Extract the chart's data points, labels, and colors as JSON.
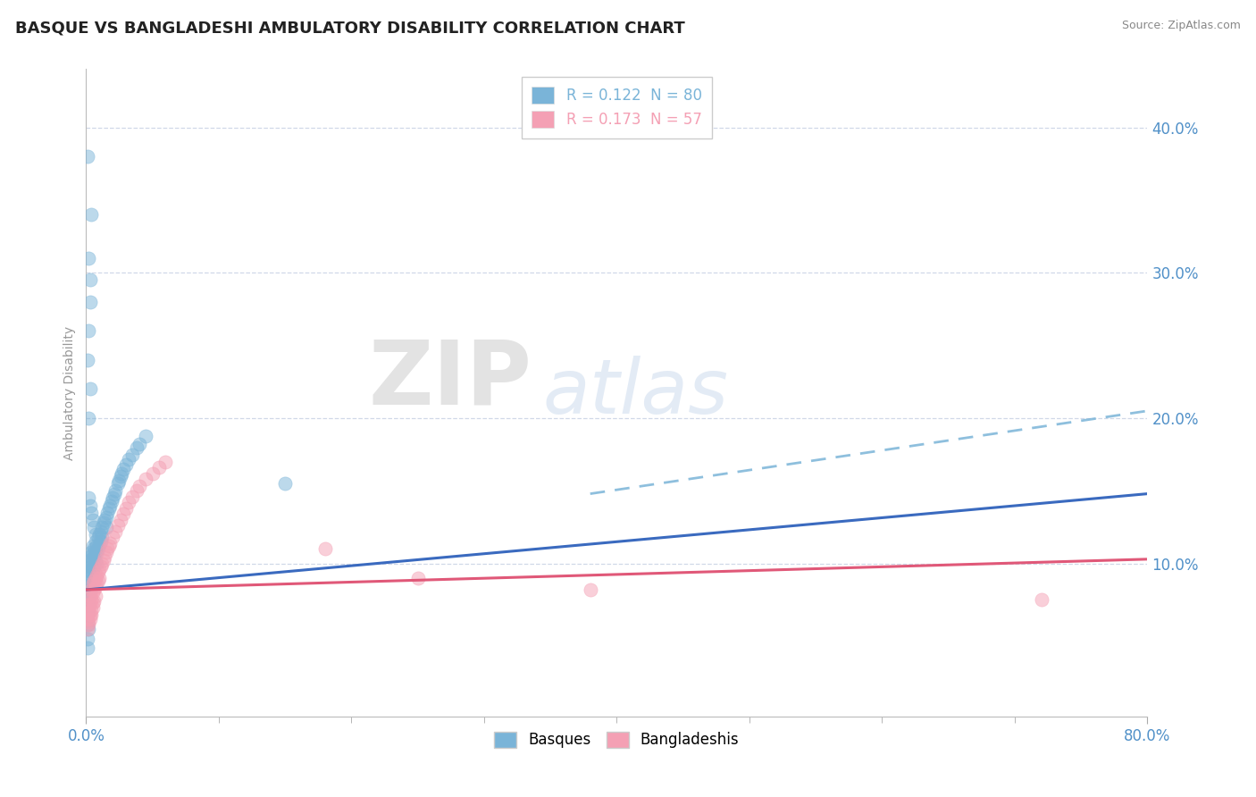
{
  "title": "BASQUE VS BANGLADESHI AMBULATORY DISABILITY CORRELATION CHART",
  "source": "Source: ZipAtlas.com",
  "ylabel": "Ambulatory Disability",
  "xlim": [
    0.0,
    0.8
  ],
  "ylim": [
    -0.005,
    0.44
  ],
  "yticks": [
    0.1,
    0.2,
    0.3,
    0.4
  ],
  "ytick_labels": [
    "10.0%",
    "20.0%",
    "30.0%",
    "40.0%"
  ],
  "xtick_labels": [
    "0.0%",
    "80.0%"
  ],
  "legend_r_entries": [
    {
      "label": "R = 0.122  N = 80",
      "color": "#7ab4d8"
    },
    {
      "label": "R = 0.173  N = 57",
      "color": "#f4a0b4"
    }
  ],
  "legend_footer": [
    "Basques",
    "Bangladeshis"
  ],
  "basque_color": "#7ab4d8",
  "bangladeshi_color": "#f4a0b4",
  "trend_blue_color": "#3a6abf",
  "trend_pink_color": "#e05878",
  "trend_dashed_color": "#7ab4d8",
  "watermark_zip": "ZIP",
  "watermark_atlas": "atlas",
  "grid_color": "#d0d8e8",
  "background_color": "#ffffff",
  "title_fontsize": 13,
  "axis_label_fontsize": 10,
  "tick_fontsize": 12,
  "source_fontsize": 9,
  "trend_blue_x0": 0.0,
  "trend_blue_y0": 0.082,
  "trend_blue_x1": 0.8,
  "trend_blue_y1": 0.148,
  "trend_pink_x0": 0.0,
  "trend_pink_y0": 0.082,
  "trend_pink_x1": 0.8,
  "trend_pink_y1": 0.103,
  "trend_dash_x0": 0.38,
  "trend_dash_y0": 0.148,
  "trend_dash_x1": 0.8,
  "trend_dash_y1": 0.205,
  "basque_x": [
    0.001,
    0.001,
    0.001,
    0.002,
    0.002,
    0.002,
    0.002,
    0.002,
    0.003,
    0.003,
    0.003,
    0.003,
    0.003,
    0.004,
    0.004,
    0.004,
    0.004,
    0.005,
    0.005,
    0.005,
    0.005,
    0.006,
    0.006,
    0.006,
    0.007,
    0.007,
    0.007,
    0.008,
    0.008,
    0.008,
    0.009,
    0.009,
    0.01,
    0.01,
    0.011,
    0.011,
    0.012,
    0.012,
    0.013,
    0.014,
    0.015,
    0.015,
    0.016,
    0.017,
    0.018,
    0.019,
    0.02,
    0.021,
    0.022,
    0.024,
    0.025,
    0.026,
    0.027,
    0.028,
    0.03,
    0.032,
    0.035,
    0.038,
    0.04,
    0.045,
    0.002,
    0.003,
    0.004,
    0.005,
    0.006,
    0.007,
    0.001,
    0.002,
    0.003,
    0.004,
    0.002,
    0.003,
    0.001,
    0.002,
    0.003,
    0.15,
    0.001,
    0.002,
    0.001,
    0.001
  ],
  "basque_y": [
    0.072,
    0.068,
    0.065,
    0.095,
    0.09,
    0.085,
    0.08,
    0.075,
    0.105,
    0.1,
    0.095,
    0.088,
    0.082,
    0.108,
    0.103,
    0.098,
    0.092,
    0.112,
    0.107,
    0.102,
    0.096,
    0.11,
    0.105,
    0.098,
    0.115,
    0.108,
    0.102,
    0.112,
    0.107,
    0.1,
    0.118,
    0.11,
    0.12,
    0.113,
    0.122,
    0.115,
    0.125,
    0.118,
    0.128,
    0.13,
    0.132,
    0.125,
    0.135,
    0.138,
    0.14,
    0.143,
    0.145,
    0.148,
    0.15,
    0.155,
    0.157,
    0.16,
    0.162,
    0.165,
    0.168,
    0.172,
    0.175,
    0.18,
    0.182,
    0.188,
    0.145,
    0.14,
    0.135,
    0.13,
    0.125,
    0.12,
    0.24,
    0.26,
    0.28,
    0.34,
    0.2,
    0.22,
    0.38,
    0.31,
    0.295,
    0.155,
    0.058,
    0.055,
    0.048,
    0.042
  ],
  "bangladeshi_x": [
    0.001,
    0.001,
    0.002,
    0.002,
    0.002,
    0.003,
    0.003,
    0.003,
    0.004,
    0.004,
    0.004,
    0.005,
    0.005,
    0.005,
    0.006,
    0.006,
    0.007,
    0.007,
    0.008,
    0.008,
    0.009,
    0.009,
    0.01,
    0.01,
    0.011,
    0.012,
    0.013,
    0.014,
    0.015,
    0.016,
    0.017,
    0.018,
    0.02,
    0.022,
    0.024,
    0.026,
    0.028,
    0.03,
    0.032,
    0.035,
    0.038,
    0.04,
    0.045,
    0.05,
    0.055,
    0.06,
    0.001,
    0.002,
    0.003,
    0.004,
    0.005,
    0.006,
    0.007,
    0.72,
    0.18,
    0.25,
    0.38
  ],
  "bangladeshi_y": [
    0.068,
    0.062,
    0.072,
    0.066,
    0.06,
    0.078,
    0.072,
    0.065,
    0.082,
    0.075,
    0.068,
    0.086,
    0.08,
    0.073,
    0.088,
    0.082,
    0.09,
    0.084,
    0.092,
    0.086,
    0.094,
    0.088,
    0.096,
    0.09,
    0.098,
    0.1,
    0.102,
    0.105,
    0.108,
    0.11,
    0.112,
    0.114,
    0.118,
    0.122,
    0.126,
    0.13,
    0.134,
    0.138,
    0.142,
    0.146,
    0.15,
    0.153,
    0.158,
    0.162,
    0.166,
    0.17,
    0.055,
    0.058,
    0.062,
    0.065,
    0.07,
    0.074,
    0.078,
    0.075,
    0.11,
    0.09,
    0.082
  ]
}
